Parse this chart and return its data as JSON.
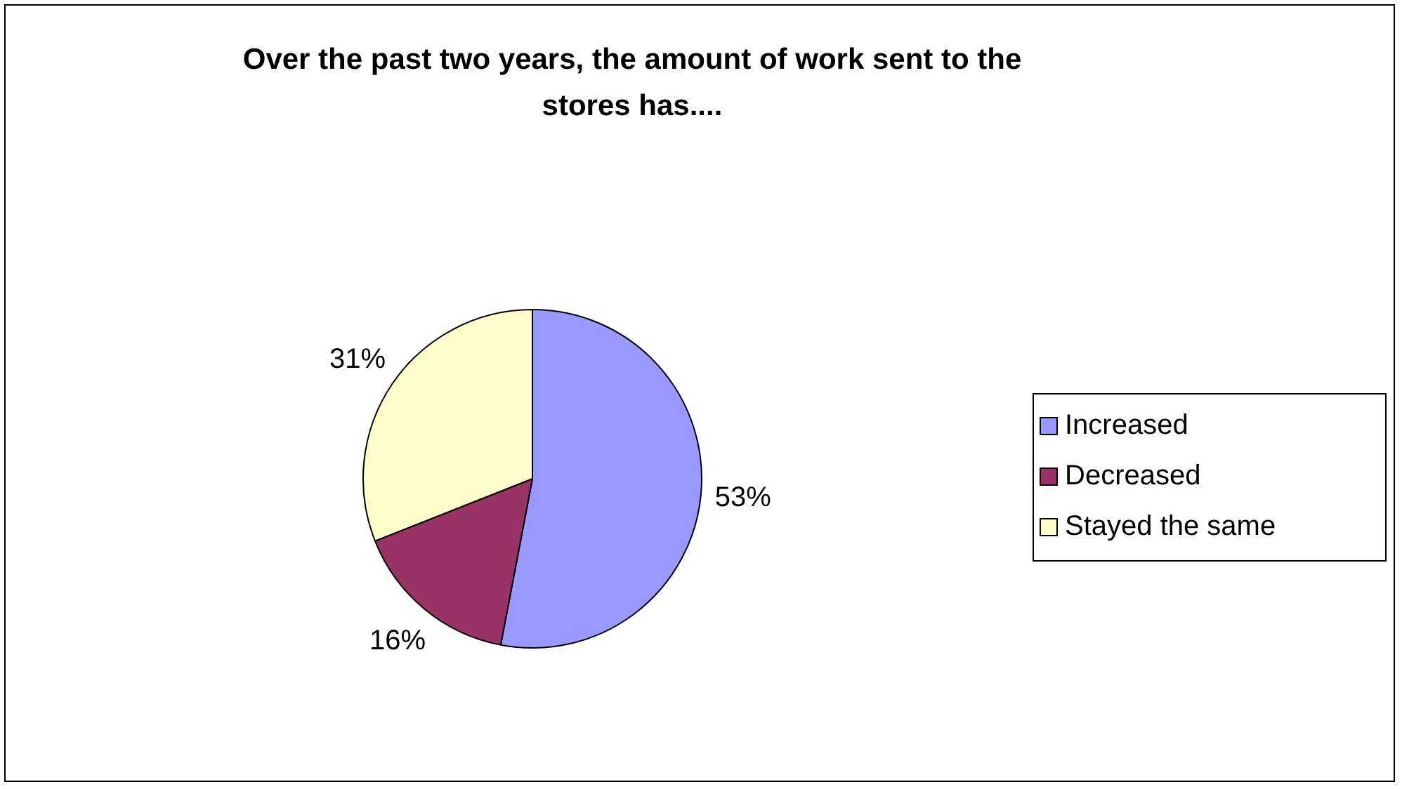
{
  "chart_data": {
    "type": "pie",
    "title": "Over the past two years, the amount of work sent to the stores has....",
    "categories": [
      "Increased",
      "Decreased",
      "Stayed the same"
    ],
    "values": [
      53,
      16,
      31
    ],
    "colors": [
      "#9999ff",
      "#993366",
      "#ffffcc"
    ],
    "value_labels": [
      "53%",
      "16%",
      "31%"
    ],
    "legend": "right"
  }
}
